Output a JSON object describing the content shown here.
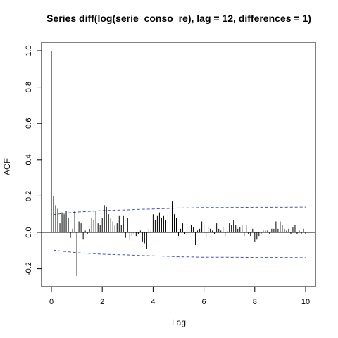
{
  "chart_data": {
    "type": "bar",
    "title": "Series  diff(log(serie_conso_re), lag = 12, differences = 1)",
    "xlabel": "Lag",
    "ylabel": "ACF",
    "xlim": [
      0,
      10
    ],
    "ylim": [
      -0.29,
      1.05
    ],
    "x_ticks": [
      "0",
      "2",
      "4",
      "6",
      "8",
      "10"
    ],
    "x_tick_values": [
      0,
      2,
      4,
      6,
      8,
      10
    ],
    "y_ticks": [
      "-0.2",
      "0.0",
      "0.2",
      "0.4",
      "0.6",
      "0.8",
      "1.0"
    ],
    "y_tick_values": [
      -0.2,
      0,
      0.2,
      0.4,
      0.6,
      0.8,
      1.0
    ],
    "grid": false,
    "x": [
      0,
      0.0833,
      0.1667,
      0.25,
      0.3333,
      0.4167,
      0.5,
      0.5833,
      0.6667,
      0.75,
      0.8333,
      0.9167,
      1.0,
      1.0833,
      1.1667,
      1.25,
      1.3333,
      1.4167,
      1.5,
      1.5833,
      1.6667,
      1.75,
      1.8333,
      1.9167,
      2.0,
      2.0833,
      2.1667,
      2.25,
      2.3333,
      2.4167,
      2.5,
      2.5833,
      2.6667,
      2.75,
      2.8333,
      2.9167,
      3.0,
      3.0833,
      3.1667,
      3.25,
      3.3333,
      3.4167,
      3.5,
      3.5833,
      3.6667,
      3.75,
      3.8333,
      3.9167,
      4.0,
      4.0833,
      4.1667,
      4.25,
      4.3333,
      4.4167,
      4.5,
      4.5833,
      4.6667,
      4.75,
      4.8333,
      4.9167,
      5.0,
      5.0833,
      5.1667,
      5.25,
      5.3333,
      5.4167,
      5.5,
      5.5833,
      5.6667,
      5.75,
      5.8333,
      5.9167,
      6.0,
      6.0833,
      6.1667,
      6.25,
      6.3333,
      6.4167,
      6.5,
      6.5833,
      6.6667,
      6.75,
      6.8333,
      6.9167,
      7.0,
      7.0833,
      7.1667,
      7.25,
      7.3333,
      7.4167,
      7.5,
      7.5833,
      7.6667,
      7.75,
      7.8333,
      7.9167,
      8.0,
      8.0833,
      8.1667,
      8.25,
      8.3333,
      8.4167,
      8.5,
      8.5833,
      8.6667,
      8.75,
      8.8333,
      8.9167,
      9.0,
      9.0833,
      9.1667,
      9.25,
      9.3333,
      9.4167,
      9.5,
      9.5833,
      9.6667,
      9.75,
      9.8333,
      9.9167,
      10.0
    ],
    "series": [
      {
        "values": [
          1.0,
          0.2,
          0.15,
          0.13,
          0.05,
          0.11,
          0.1,
          0.12,
          0.08,
          -0.03,
          0.02,
          0.12,
          -0.24,
          0.06,
          0.05,
          -0.04,
          0.01,
          -0.01,
          0.02,
          0.08,
          0.07,
          0.12,
          0.05,
          0.04,
          0.08,
          0.15,
          0.14,
          0.1,
          0.08,
          0.06,
          0.04,
          0.05,
          0.09,
          0.04,
          0.09,
          -0.03,
          0.08,
          -0.04,
          -0.02,
          -0.01,
          -0.02,
          -0.01,
          0.01,
          -0.05,
          -0.06,
          -0.09,
          0.02,
          0.01,
          0.1,
          0.07,
          0.09,
          0.11,
          0.08,
          0.09,
          0.07,
          0.11,
          0.12,
          0.17,
          0.1,
          0.08,
          -0.02,
          0.02,
          0.05,
          -0.01,
          0.05,
          0.04,
          0.04,
          0.03,
          -0.07,
          0.01,
          0.02,
          0.06,
          0.04,
          -0.03,
          0.03,
          0.02,
          0.01,
          -0.01,
          0.05,
          0.02,
          0.01,
          0.03,
          -0.02,
          0.01,
          0.05,
          0.04,
          0.07,
          0.04,
          0.02,
          0.03,
          0.04,
          -0.02,
          0.04,
          -0.01,
          -0.02,
          0.02,
          -0.05,
          -0.04,
          -0.02,
          -0.01,
          0.01,
          0.01,
          0.01,
          -0.01,
          0.02,
          0.02,
          0.06,
          0.02,
          0.06,
          0.04,
          0.02,
          0.01,
          0.02,
          -0.01,
          0.03,
          0.04,
          -0.01,
          0.01,
          -0.01,
          0.02,
          -0.01
        ]
      }
    ],
    "confidence_band": {
      "x": [
        0.0833,
        0.5,
        1.0,
        1.5,
        2.0,
        2.5,
        3.0,
        3.5,
        4.0,
        4.5,
        5.0,
        5.5,
        6.0,
        7.0,
        8.0,
        9.0,
        10.0
      ],
      "upper": [
        0.098,
        0.105,
        0.112,
        0.116,
        0.12,
        0.122,
        0.124,
        0.127,
        0.129,
        0.131,
        0.134,
        0.135,
        0.137,
        0.137,
        0.138,
        0.138,
        0.139
      ],
      "lower": [
        -0.098,
        -0.105,
        -0.112,
        -0.116,
        -0.12,
        -0.122,
        -0.124,
        -0.127,
        -0.129,
        -0.131,
        -0.134,
        -0.135,
        -0.137,
        -0.137,
        -0.138,
        -0.138,
        -0.139
      ],
      "color": "#3355dd"
    },
    "colors": {
      "bars": "#000000",
      "confidence": "#3355dd",
      "background": "#ffffff"
    }
  }
}
